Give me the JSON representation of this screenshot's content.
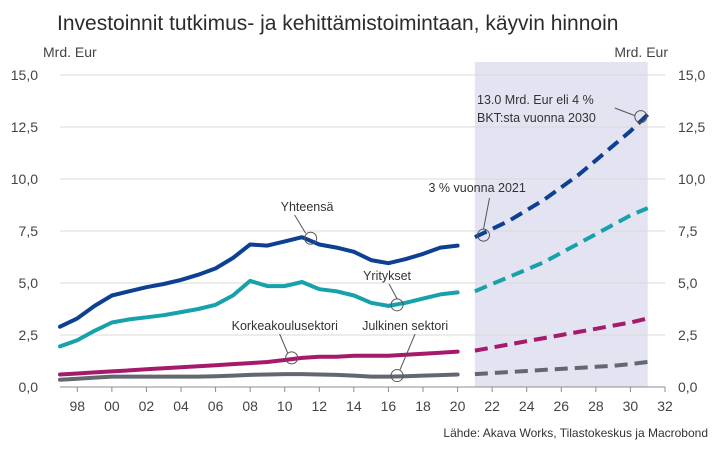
{
  "chart_data": {
    "type": "line",
    "title": "Investoinnit tutkimus- ja kehittämistoimintaan, käyvin hinnoin",
    "ylabel_left": "Mrd. Eur",
    "ylabel_right": "Mrd. Eur",
    "ylim": [
      0,
      15
    ],
    "yticks": [
      "0,0",
      "2,5",
      "5,0",
      "7,5",
      "10,0",
      "12,5",
      "15,0"
    ],
    "ytick_values": [
      0,
      2.5,
      5,
      7.5,
      10,
      12.5,
      15
    ],
    "xlim": [
      1997,
      2032
    ],
    "xticks": [
      "98",
      "00",
      "02",
      "04",
      "06",
      "08",
      "10",
      "12",
      "14",
      "16",
      "18",
      "20",
      "22",
      "24",
      "26",
      "28",
      "30",
      "32"
    ],
    "xtick_values": [
      1998,
      2000,
      2002,
      2004,
      2006,
      2008,
      2010,
      2012,
      2014,
      2016,
      2018,
      2020,
      2022,
      2024,
      2026,
      2028,
      2030,
      2032
    ],
    "forecast_period": [
      2021,
      2031
    ],
    "forecast_color": "#e3e3f1",
    "grid": "horizontal",
    "series": [
      {
        "name": "Yhteensä",
        "color": "#0d3f93",
        "x": [
          1997,
          1998,
          1999,
          2000,
          2001,
          2002,
          2003,
          2004,
          2005,
          2006,
          2007,
          2008,
          2009,
          2010,
          2011,
          2012,
          2013,
          2014,
          2015,
          2016,
          2017,
          2018,
          2019,
          2020
        ],
        "values": [
          2.9,
          3.3,
          3.9,
          4.4,
          4.6,
          4.8,
          4.95,
          5.15,
          5.4,
          5.7,
          6.2,
          6.85,
          6.8,
          7.0,
          7.2,
          6.85,
          6.7,
          6.5,
          6.1,
          5.95,
          6.15,
          6.4,
          6.7,
          6.8
        ],
        "forecast_x": [
          2021,
          2022,
          2023,
          2024,
          2025,
          2026,
          2027,
          2028,
          2029,
          2030,
          2031
        ],
        "forecast_values": [
          7.2,
          7.6,
          8.0,
          8.5,
          9.0,
          9.6,
          10.2,
          10.9,
          11.6,
          12.3,
          13.1
        ]
      },
      {
        "name": "Yritykset",
        "color": "#17a1ab",
        "x": [
          1997,
          1998,
          1999,
          2000,
          2001,
          2002,
          2003,
          2004,
          2005,
          2006,
          2007,
          2008,
          2009,
          2010,
          2011,
          2012,
          2013,
          2014,
          2015,
          2016,
          2017,
          2018,
          2019,
          2020
        ],
        "values": [
          1.95,
          2.25,
          2.7,
          3.1,
          3.25,
          3.35,
          3.45,
          3.6,
          3.75,
          3.95,
          4.4,
          5.1,
          4.85,
          4.85,
          5.05,
          4.7,
          4.6,
          4.4,
          4.05,
          3.9,
          4.05,
          4.25,
          4.45,
          4.55
        ],
        "forecast_x": [
          2021,
          2022,
          2023,
          2024,
          2025,
          2026,
          2027,
          2028,
          2029,
          2030,
          2031
        ],
        "forecast_values": [
          4.6,
          4.95,
          5.3,
          5.65,
          6.0,
          6.45,
          6.9,
          7.35,
          7.8,
          8.25,
          8.6
        ]
      },
      {
        "name": "Korkeakoulusektori",
        "color": "#a51a6b",
        "x": [
          1997,
          1998,
          1999,
          2000,
          2001,
          2002,
          2003,
          2004,
          2005,
          2006,
          2007,
          2008,
          2009,
          2010,
          2011,
          2012,
          2013,
          2014,
          2015,
          2016,
          2017,
          2018,
          2019,
          2020
        ],
        "values": [
          0.6,
          0.65,
          0.7,
          0.75,
          0.8,
          0.85,
          0.9,
          0.95,
          1.0,
          1.05,
          1.1,
          1.15,
          1.2,
          1.3,
          1.4,
          1.45,
          1.45,
          1.5,
          1.5,
          1.5,
          1.55,
          1.6,
          1.65,
          1.7
        ],
        "forecast_x": [
          2021,
          2022,
          2023,
          2024,
          2025,
          2026,
          2027,
          2028,
          2029,
          2030,
          2031
        ],
        "forecast_values": [
          1.75,
          1.9,
          2.05,
          2.2,
          2.35,
          2.5,
          2.65,
          2.8,
          2.95,
          3.1,
          3.3
        ]
      },
      {
        "name": "Julkinen sektori",
        "color": "#626770",
        "x": [
          1997,
          1998,
          1999,
          2000,
          2001,
          2002,
          2003,
          2004,
          2005,
          2006,
          2007,
          2008,
          2009,
          2010,
          2011,
          2012,
          2013,
          2014,
          2015,
          2016,
          2017,
          2018,
          2019,
          2020
        ],
        "values": [
          0.35,
          0.4,
          0.45,
          0.5,
          0.5,
          0.5,
          0.5,
          0.5,
          0.5,
          0.52,
          0.55,
          0.58,
          0.6,
          0.62,
          0.62,
          0.6,
          0.58,
          0.55,
          0.5,
          0.5,
          0.52,
          0.55,
          0.57,
          0.6
        ],
        "forecast_x": [
          2021,
          2022,
          2023,
          2024,
          2025,
          2026,
          2027,
          2028,
          2029,
          2030,
          2031
        ],
        "forecast_values": [
          0.62,
          0.67,
          0.72,
          0.77,
          0.82,
          0.87,
          0.92,
          0.97,
          1.02,
          1.1,
          1.2
        ]
      }
    ],
    "annotations": {
      "yhteensa": {
        "text": "Yhteensä",
        "x": 2011.5,
        "y": 7.15
      },
      "yritykset": {
        "text": "Yritykset",
        "x": 2016.5,
        "y": 3.95
      },
      "korkeakoulu": {
        "text": "Korkeakoulusektori",
        "x": 2010.4,
        "y": 1.4
      },
      "julkinen": {
        "text": "Julkinen sektori",
        "x": 2016.5,
        "y": 0.55
      },
      "vuonna2021": {
        "text": "3 % vuonna 2021",
        "x": 2021.5,
        "y": 7.3
      },
      "target2030_line1": {
        "text": "13.0 Mrd. Eur eli 4 %",
        "x": 2030.6,
        "y": 13.0
      },
      "target2030_line2": {
        "text": "BKT:sta vuonna 2030"
      }
    },
    "source": "Lähde: Akava Works, Tilastokeskus ja Macrobond"
  }
}
